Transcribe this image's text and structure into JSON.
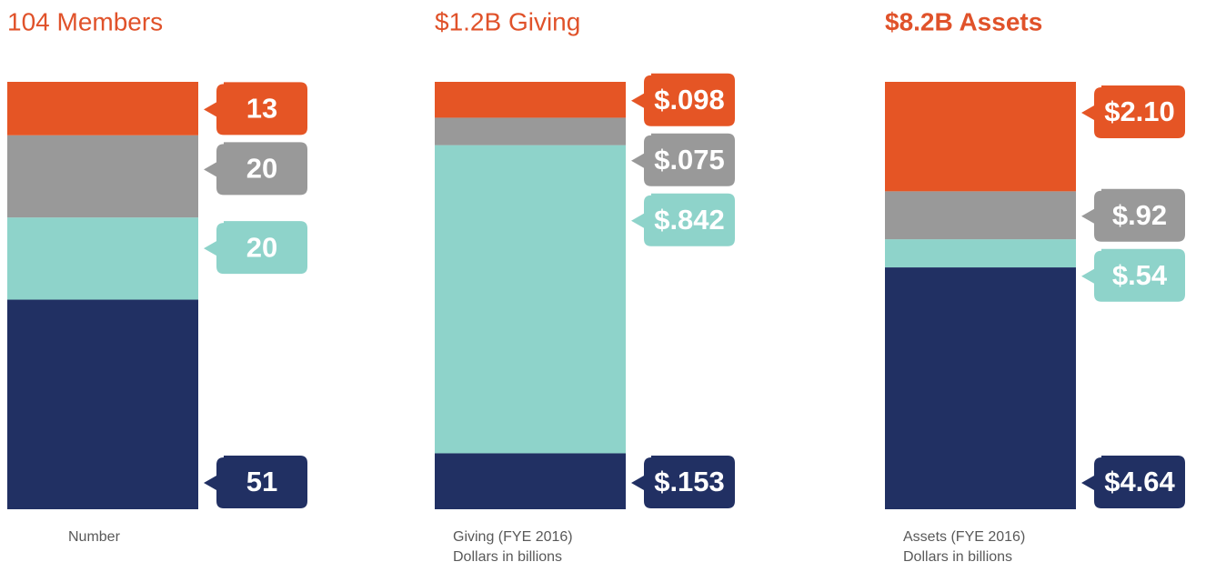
{
  "chart_data": [
    {
      "type": "stacked-bar",
      "title": "104 Members",
      "title_bold": false,
      "caption": [
        "Number"
      ],
      "values": [
        51,
        20,
        20,
        13
      ],
      "colors": [
        "#213063",
        "#8ED3CA",
        "#999999",
        "#E55525"
      ]
    },
    {
      "type": "stacked-bar",
      "title": "$1.2B Giving",
      "title_bold": false,
      "caption": [
        "Giving (FYE 2016)",
        "Dollars in billions"
      ],
      "values": [
        0.153,
        0.842,
        0.075,
        0.098
      ],
      "value_labels": [
        "$.153",
        "$.842",
        "$.075",
        "$.098"
      ],
      "colors": [
        "#213063",
        "#8ED3CA",
        "#999999",
        "#E55525"
      ]
    },
    {
      "type": "stacked-bar",
      "title": "$8.2B Assets",
      "title_bold": true,
      "caption": [
        "Assets (FYE 2016)",
        "Dollars in billions"
      ],
      "values": [
        4.64,
        0.54,
        0.92,
        2.1
      ],
      "value_labels": [
        "$4.64",
        "$.54",
        "$.92",
        "$2.10"
      ],
      "colors": [
        "#213063",
        "#8ED3CA",
        "#999999",
        "#E55525"
      ]
    }
  ]
}
